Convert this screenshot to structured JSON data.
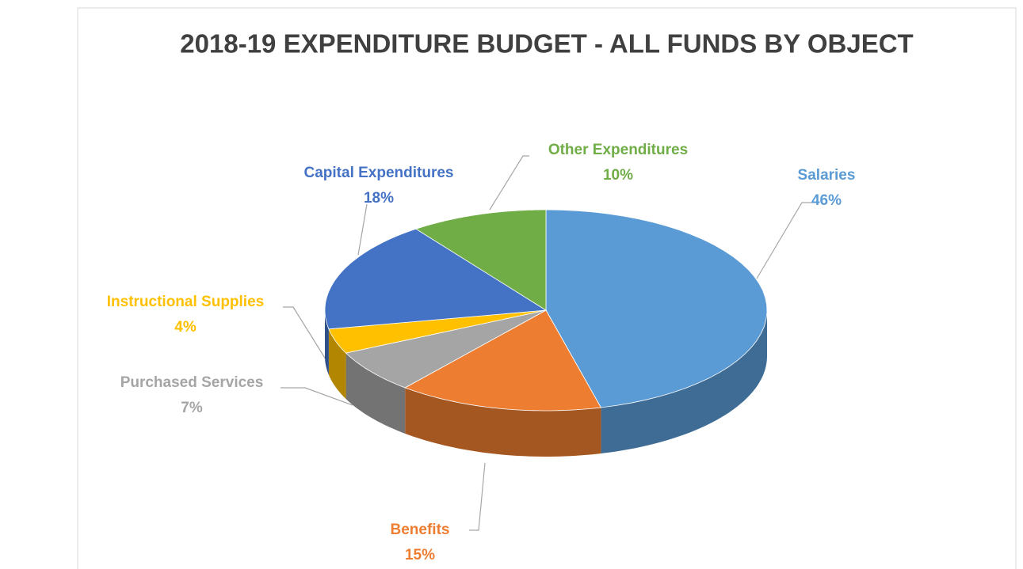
{
  "chart_data": {
    "type": "pie3d",
    "title": "2018-19 EXPENDITURE BUDGET - ALL FUNDS BY OBJECT",
    "categories": [
      "Salaries",
      "Benefits",
      "Purchased Services",
      "Instructional Supplies",
      "Capital Expenditures",
      "Other Expenditures"
    ],
    "values": [
      46,
      15,
      7,
      4,
      18,
      10
    ],
    "value_labels": [
      "46%",
      "15%",
      "7%",
      "4%",
      "18%",
      "10%"
    ],
    "colors": [
      "#5b9bd5",
      "#ed7d31",
      "#a5a5a5",
      "#ffc000",
      "#4472c4",
      "#70ad47"
    ]
  }
}
